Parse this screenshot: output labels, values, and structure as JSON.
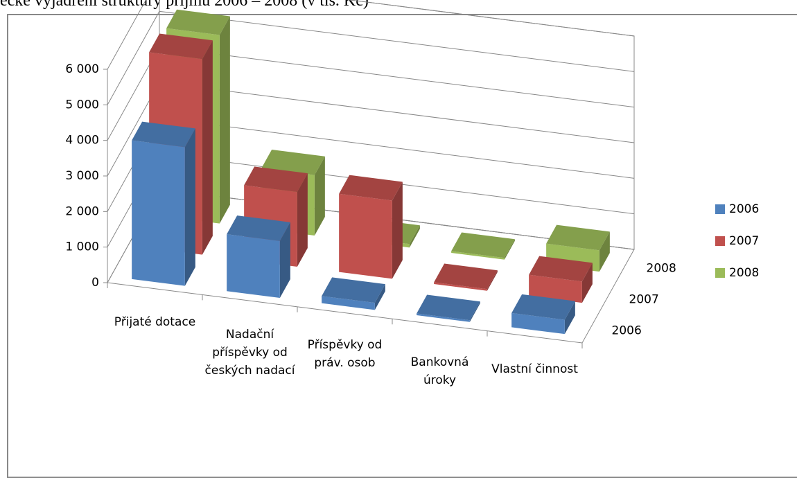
{
  "chart_data": {
    "type": "bar3d",
    "title": "ecké vyjádření struktury příjmů 2006 – 2008 (v tis. Kč)",
    "categories": [
      "Přijaté dotace",
      "Nadační příspěvky od českých nadací",
      "Příspěvky od práv. osob",
      "Bankovná úroky",
      "Vlastní činnost"
    ],
    "series": [
      {
        "name": "2006",
        "color": "#4f81bd",
        "values": [
          3900,
          1600,
          200,
          50,
          400
        ]
      },
      {
        "name": "2007",
        "color": "#c0504d",
        "values": [
          5500,
          2100,
          2200,
          50,
          600
        ]
      },
      {
        "name": "2008",
        "color": "#9bbb59",
        "values": [
          5300,
          1700,
          100,
          50,
          600
        ]
      }
    ],
    "ylim": [
      0,
      6000
    ],
    "yticks": [
      0,
      {
        "value": 1000,
        "label": "1 000"
      },
      {
        "value": 2000,
        "label": "2 000"
      },
      {
        "value": 3000,
        "label": "3 000"
      },
      {
        "value": 4000,
        "label": "4 000"
      },
      {
        "value": 5000,
        "label": "5 000"
      },
      {
        "value": 6000,
        "label": "6 000"
      }
    ],
    "grid": true,
    "legend": "right"
  }
}
